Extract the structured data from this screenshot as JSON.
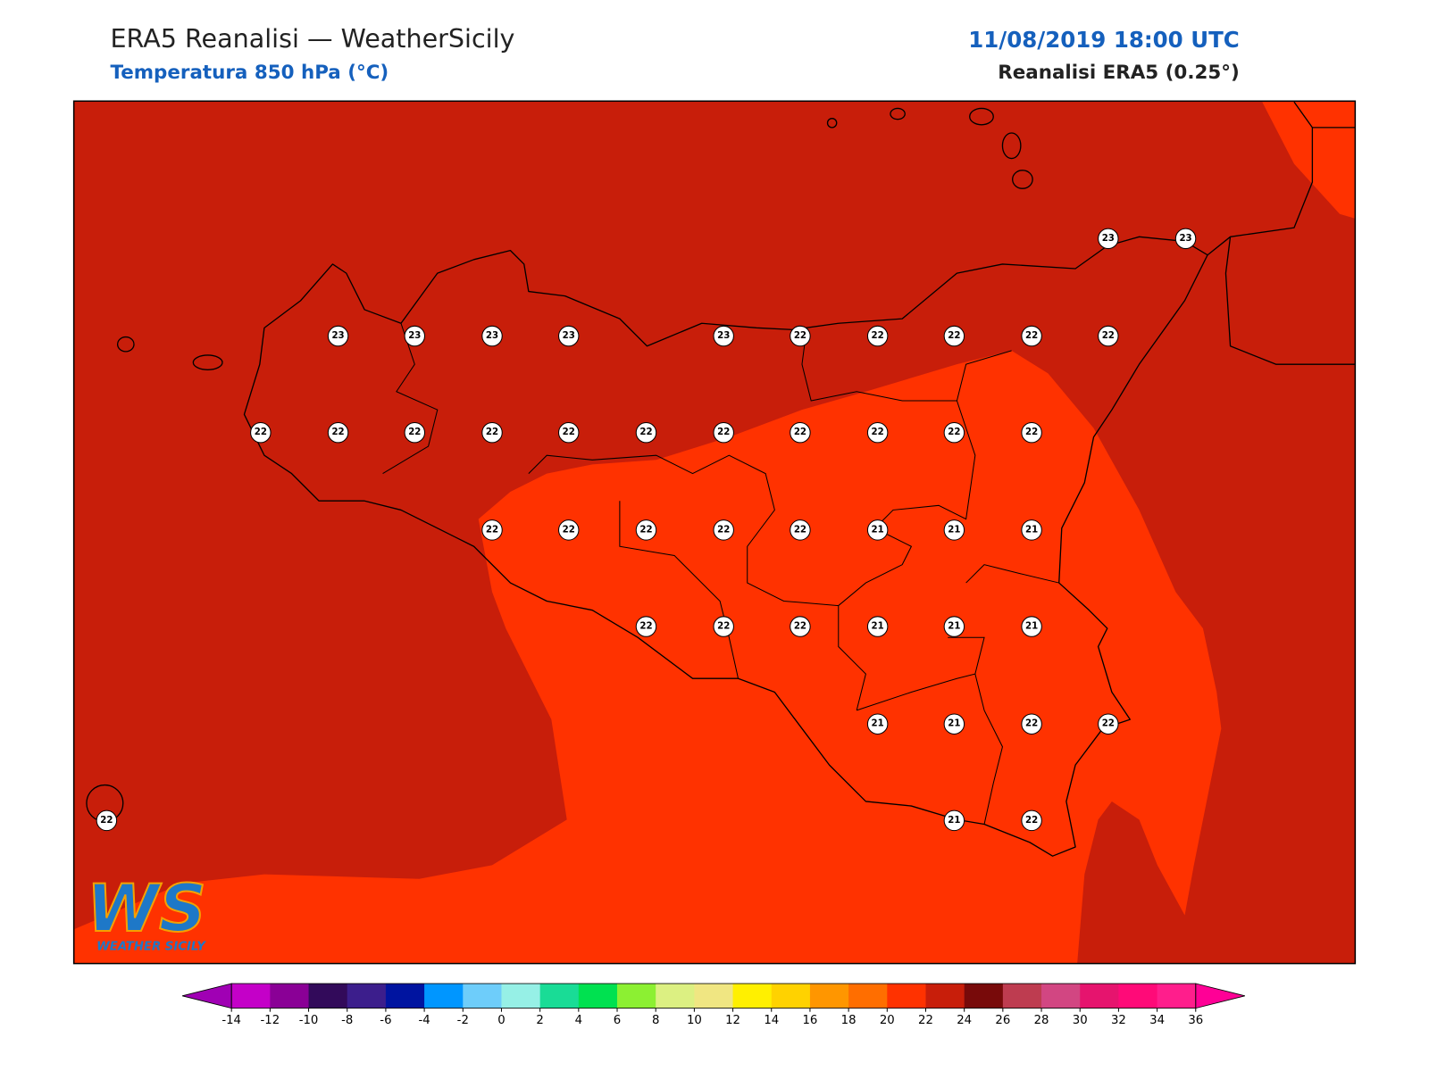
{
  "header": {
    "title": "ERA5 Reanalisi — WeatherSicily",
    "subtitle": "Temperatura 850 hPa (°C)",
    "date": "11/08/2019 18:00 UTC",
    "source": "Reanalisi ERA5 (0.25°)"
  },
  "stations": {
    "values": [
      23,
      23,
      23,
      23,
      23,
      23,
      23,
      22,
      22,
      22,
      22,
      22,
      22,
      22,
      22,
      22,
      22,
      22,
      22,
      22,
      22,
      22,
      22,
      22,
      22,
      22,
      22,
      22,
      21,
      21,
      21,
      22,
      22,
      22,
      21,
      21,
      21,
      21,
      21,
      22,
      22,
      22,
      21,
      22
    ]
  },
  "colorbar": {
    "ticks": [
      -14,
      -12,
      -10,
      -8,
      -6,
      -4,
      -2,
      0,
      2,
      4,
      6,
      8,
      10,
      12,
      14,
      16,
      18,
      20,
      22,
      24,
      26,
      28,
      30,
      32,
      34,
      36
    ],
    "colors": [
      "#c400c8",
      "#8a0096",
      "#320a5a",
      "#3c1e8c",
      "#0014a0",
      "#0096ff",
      "#6ecdfa",
      "#96f0e6",
      "#19dc96",
      "#00e150",
      "#8cf032",
      "#dcf082",
      "#f0e682",
      "#fff000",
      "#ffd200",
      "#ff9600",
      "#ff6e00",
      "#ff3200",
      "#c81e0a",
      "#780a0a",
      "#be3c50",
      "#d24682",
      "#e6146e",
      "#ff0a78",
      "#ff1e8c"
    ],
    "under_color": "#a000b4",
    "over_color": "#ff0096"
  },
  "logo": {
    "mark": "WS",
    "name": "WEATHER SICILY"
  }
}
